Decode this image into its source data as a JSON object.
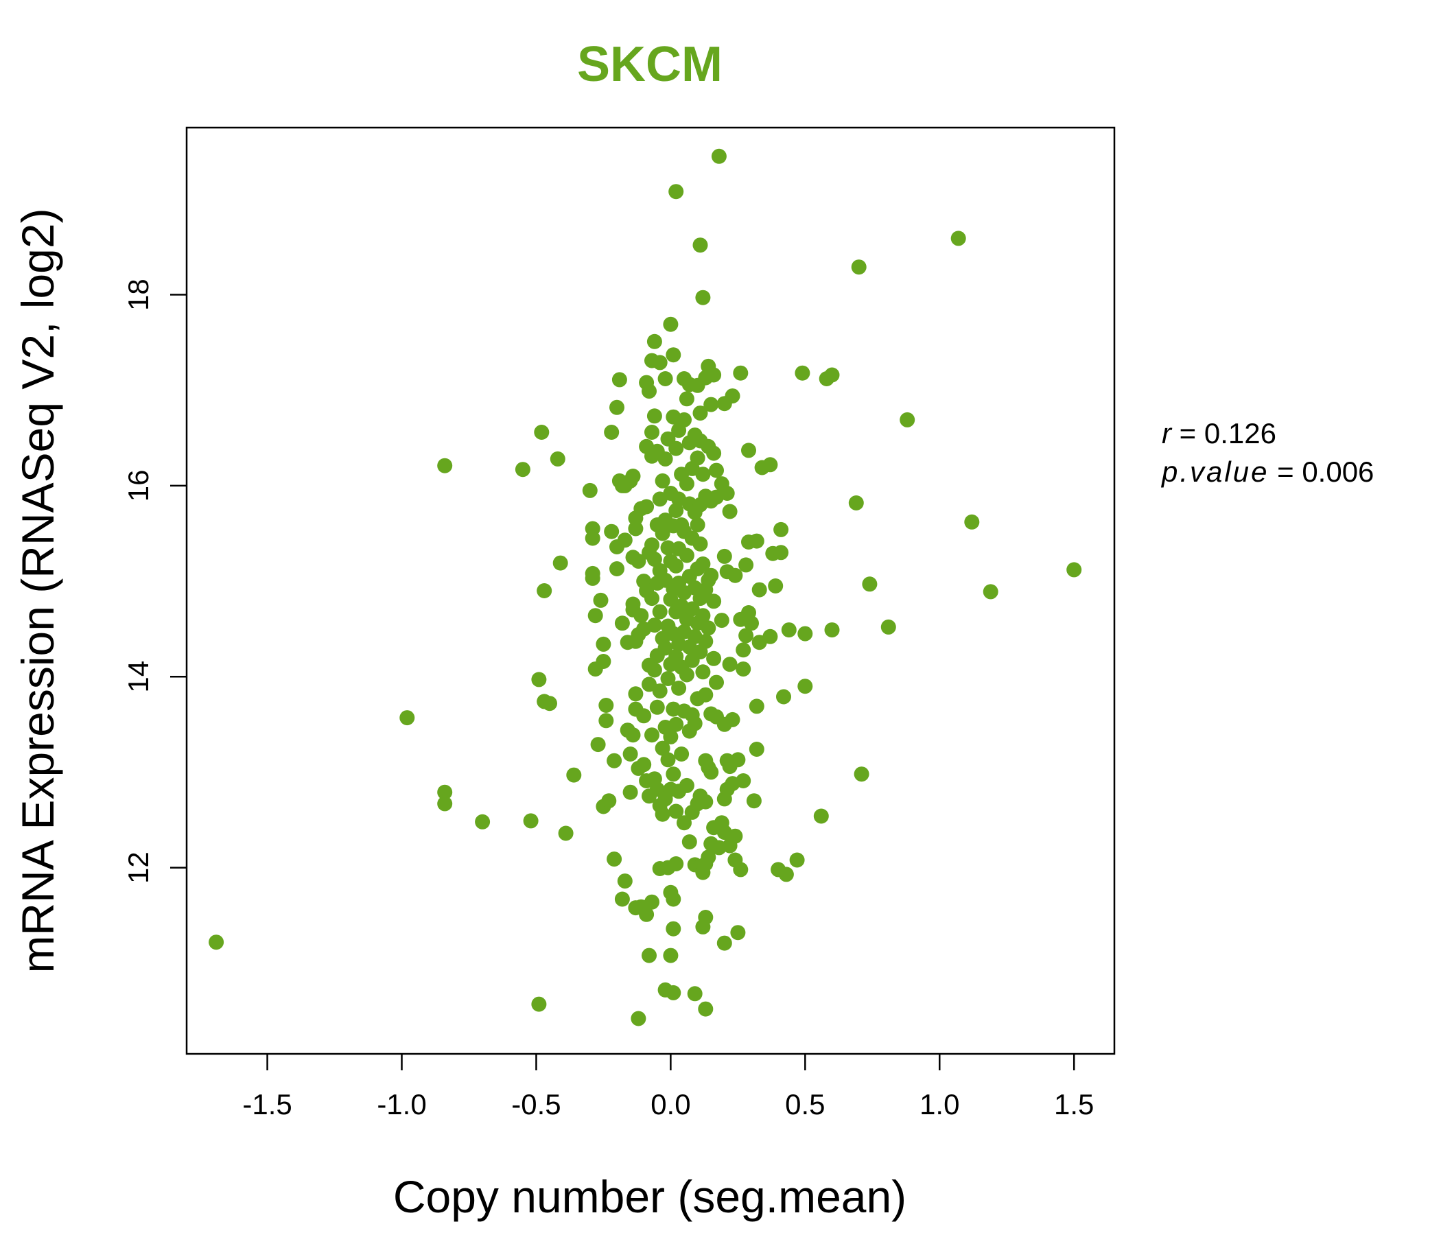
{
  "chart_data": {
    "type": "scatter",
    "title": "SKCM",
    "xlabel": "Copy number (seg.mean)",
    "ylabel": "mRNA Expression (RNASeq V2, log2)",
    "xlim": [
      -1.8,
      1.65
    ],
    "ylim": [
      10.05,
      19.75
    ],
    "xticks": [
      -1.5,
      -1.0,
      -0.5,
      0.0,
      0.5,
      1.0,
      1.5
    ],
    "xtick_labels": [
      "-1.5",
      "-1.0",
      "-0.5",
      "0.0",
      "0.5",
      "1.0",
      "1.5"
    ],
    "yticks": [
      12,
      14,
      16,
      18
    ],
    "ytick_labels": [
      "12",
      "14",
      "16",
      "18"
    ],
    "grid": false,
    "point_color": "#66A61E",
    "stats": {
      "r_label": "r",
      "r_value": "0.126",
      "p_label": "p.value",
      "p_value": "0.006"
    },
    "points": [
      [
        -1.69,
        11.22
      ],
      [
        -0.98,
        13.57
      ],
      [
        -0.84,
        16.21
      ],
      [
        -0.84,
        12.79
      ],
      [
        -0.84,
        12.67
      ],
      [
        -0.7,
        12.48
      ],
      [
        -0.55,
        16.17
      ],
      [
        -0.52,
        12.49
      ],
      [
        -0.49,
        13.97
      ],
      [
        -0.48,
        16.56
      ],
      [
        -0.47,
        14.9
      ],
      [
        -0.47,
        13.74
      ],
      [
        -0.45,
        13.72
      ],
      [
        -0.42,
        16.28
      ],
      [
        -0.41,
        15.19
      ],
      [
        -0.39,
        12.36
      ],
      [
        -0.36,
        12.97
      ],
      [
        -0.49,
        10.57
      ],
      [
        -0.3,
        15.95
      ],
      [
        -0.29,
        15.55
      ],
      [
        -0.29,
        15.45
      ],
      [
        -0.29,
        15.08
      ],
      [
        -0.29,
        15.03
      ],
      [
        -0.28,
        14.64
      ],
      [
        -0.28,
        14.08
      ],
      [
        -0.27,
        13.29
      ],
      [
        -0.26,
        14.8
      ],
      [
        -0.25,
        14.34
      ],
      [
        -0.25,
        14.16
      ],
      [
        -0.25,
        12.64
      ],
      [
        -0.24,
        13.7
      ],
      [
        -0.24,
        13.54
      ],
      [
        -0.23,
        12.7
      ],
      [
        -0.22,
        16.56
      ],
      [
        -0.22,
        15.52
      ],
      [
        -0.21,
        13.12
      ],
      [
        -0.21,
        12.09
      ],
      [
        -0.2,
        16.82
      ],
      [
        -0.2,
        15.36
      ],
      [
        -0.2,
        15.13
      ],
      [
        -0.19,
        17.11
      ],
      [
        -0.19,
        16.05
      ],
      [
        -0.18,
        16.0
      ],
      [
        -0.18,
        14.56
      ],
      [
        -0.18,
        11.67
      ],
      [
        -0.17,
        16.0
      ],
      [
        -0.17,
        15.43
      ],
      [
        -0.17,
        11.86
      ],
      [
        -0.16,
        14.36
      ],
      [
        -0.16,
        13.44
      ],
      [
        -0.15,
        16.05
      ],
      [
        -0.15,
        13.19
      ],
      [
        -0.15,
        12.79
      ],
      [
        -0.14,
        16.1
      ],
      [
        -0.14,
        15.25
      ],
      [
        -0.14,
        14.76
      ],
      [
        -0.14,
        14.7
      ],
      [
        -0.14,
        13.39
      ],
      [
        -0.13,
        15.66
      ],
      [
        -0.13,
        15.55
      ],
      [
        -0.13,
        14.37
      ],
      [
        -0.13,
        13.82
      ],
      [
        -0.13,
        13.66
      ],
      [
        -0.13,
        11.58
      ],
      [
        -0.12,
        15.21
      ],
      [
        -0.12,
        14.44
      ],
      [
        -0.12,
        13.04
      ],
      [
        -0.12,
        10.42
      ],
      [
        -0.11,
        15.76
      ],
      [
        -0.11,
        14.64
      ],
      [
        -0.11,
        11.59
      ],
      [
        -0.1,
        15.0
      ],
      [
        -0.1,
        14.5
      ],
      [
        -0.1,
        13.59
      ],
      [
        -0.1,
        13.08
      ],
      [
        -0.09,
        17.08
      ],
      [
        -0.09,
        16.41
      ],
      [
        -0.09,
        15.78
      ],
      [
        -0.09,
        14.9
      ],
      [
        -0.09,
        12.91
      ],
      [
        -0.09,
        11.51
      ],
      [
        -0.08,
        16.99
      ],
      [
        -0.08,
        15.3
      ],
      [
        -0.08,
        14.12
      ],
      [
        -0.08,
        13.92
      ],
      [
        -0.08,
        12.75
      ],
      [
        -0.08,
        11.08
      ],
      [
        -0.07,
        17.31
      ],
      [
        -0.07,
        16.56
      ],
      [
        -0.07,
        16.31
      ],
      [
        -0.07,
        15.38
      ],
      [
        -0.07,
        14.82
      ],
      [
        -0.07,
        13.39
      ],
      [
        -0.07,
        11.64
      ],
      [
        -0.06,
        17.51
      ],
      [
        -0.06,
        16.73
      ],
      [
        -0.06,
        15.23
      ],
      [
        -0.06,
        14.54
      ],
      [
        -0.06,
        14.07
      ],
      [
        -0.06,
        12.93
      ],
      [
        -0.05,
        16.36
      ],
      [
        -0.05,
        15.59
      ],
      [
        -0.05,
        14.98
      ],
      [
        -0.05,
        14.22
      ],
      [
        -0.05,
        13.68
      ],
      [
        -0.05,
        12.82
      ],
      [
        -0.04,
        17.29
      ],
      [
        -0.04,
        15.86
      ],
      [
        -0.04,
        15.11
      ],
      [
        -0.04,
        14.68
      ],
      [
        -0.04,
        13.85
      ],
      [
        -0.04,
        12.65
      ],
      [
        -0.04,
        11.99
      ],
      [
        -0.03,
        16.05
      ],
      [
        -0.03,
        15.5
      ],
      [
        -0.03,
        14.4
      ],
      [
        -0.03,
        13.25
      ],
      [
        -0.03,
        12.56
      ],
      [
        -0.02,
        17.12
      ],
      [
        -0.02,
        16.28
      ],
      [
        -0.02,
        15.64
      ],
      [
        -0.02,
        15.01
      ],
      [
        -0.02,
        14.3
      ],
      [
        -0.02,
        13.47
      ],
      [
        -0.02,
        12.72
      ],
      [
        -0.02,
        10.72
      ],
      [
        -0.01,
        16.49
      ],
      [
        -0.01,
        15.35
      ],
      [
        -0.01,
        14.53
      ],
      [
        -0.01,
        13.98
      ],
      [
        -0.01,
        13.13
      ],
      [
        -0.01,
        12.0
      ],
      [
        0.0,
        17.69
      ],
      [
        0.0,
        15.92
      ],
      [
        0.0,
        15.21
      ],
      [
        0.0,
        14.81
      ],
      [
        0.0,
        14.13
      ],
      [
        0.0,
        13.37
      ],
      [
        0.0,
        12.82
      ],
      [
        0.0,
        11.74
      ],
      [
        0.0,
        11.08
      ],
      [
        0.01,
        17.37
      ],
      [
        0.01,
        16.72
      ],
      [
        0.01,
        15.58
      ],
      [
        0.01,
        14.92
      ],
      [
        0.01,
        14.45
      ],
      [
        0.01,
        13.66
      ],
      [
        0.01,
        12.98
      ],
      [
        0.01,
        11.67
      ],
      [
        0.01,
        11.36
      ],
      [
        0.01,
        10.69
      ],
      [
        0.02,
        19.08
      ],
      [
        0.02,
        16.39
      ],
      [
        0.02,
        15.74
      ],
      [
        0.02,
        15.16
      ],
      [
        0.02,
        14.68
      ],
      [
        0.02,
        14.21
      ],
      [
        0.02,
        13.5
      ],
      [
        0.02,
        12.59
      ],
      [
        0.02,
        12.04
      ],
      [
        0.03,
        16.58
      ],
      [
        0.03,
        15.86
      ],
      [
        0.03,
        15.34
      ],
      [
        0.03,
        14.98
      ],
      [
        0.03,
        14.34
      ],
      [
        0.03,
        13.88
      ],
      [
        0.03,
        12.8
      ],
      [
        0.04,
        16.12
      ],
      [
        0.04,
        15.59
      ],
      [
        0.04,
        14.74
      ],
      [
        0.04,
        14.1
      ],
      [
        0.04,
        13.19
      ],
      [
        0.05,
        17.12
      ],
      [
        0.05,
        16.69
      ],
      [
        0.05,
        15.52
      ],
      [
        0.05,
        14.88
      ],
      [
        0.05,
        14.47
      ],
      [
        0.05,
        13.64
      ],
      [
        0.05,
        12.47
      ],
      [
        0.06,
        16.91
      ],
      [
        0.06,
        16.02
      ],
      [
        0.06,
        15.27
      ],
      [
        0.06,
        14.6
      ],
      [
        0.06,
        14.02
      ],
      [
        0.06,
        12.86
      ],
      [
        0.07,
        17.06
      ],
      [
        0.07,
        16.45
      ],
      [
        0.07,
        15.81
      ],
      [
        0.07,
        15.05
      ],
      [
        0.07,
        14.31
      ],
      [
        0.07,
        13.43
      ],
      [
        0.07,
        12.27
      ],
      [
        0.08,
        16.18
      ],
      [
        0.08,
        15.45
      ],
      [
        0.08,
        14.71
      ],
      [
        0.08,
        14.17
      ],
      [
        0.08,
        13.6
      ],
      [
        0.08,
        12.58
      ],
      [
        0.09,
        16.53
      ],
      [
        0.09,
        15.72
      ],
      [
        0.09,
        14.93
      ],
      [
        0.09,
        14.42
      ],
      [
        0.09,
        13.51
      ],
      [
        0.09,
        12.03
      ],
      [
        0.09,
        10.68
      ],
      [
        0.1,
        17.05
      ],
      [
        0.1,
        16.29
      ],
      [
        0.1,
        15.59
      ],
      [
        0.1,
        15.13
      ],
      [
        0.1,
        14.56
      ],
      [
        0.1,
        13.77
      ],
      [
        0.1,
        12.67
      ],
      [
        0.11,
        18.52
      ],
      [
        0.11,
        16.76
      ],
      [
        0.11,
        16.47
      ],
      [
        0.11,
        15.8
      ],
      [
        0.11,
        15.39
      ],
      [
        0.11,
        14.82
      ],
      [
        0.11,
        14.26
      ],
      [
        0.11,
        12.75
      ],
      [
        0.11,
        12.01
      ],
      [
        0.12,
        17.97
      ],
      [
        0.12,
        16.12
      ],
      [
        0.12,
        15.18
      ],
      [
        0.12,
        14.64
      ],
      [
        0.12,
        14.05
      ],
      [
        0.12,
        11.95
      ],
      [
        0.12,
        11.38
      ],
      [
        0.13,
        17.13
      ],
      [
        0.13,
        15.89
      ],
      [
        0.13,
        14.91
      ],
      [
        0.13,
        14.37
      ],
      [
        0.13,
        13.81
      ],
      [
        0.13,
        13.12
      ],
      [
        0.13,
        12.69
      ],
      [
        0.13,
        12.04
      ],
      [
        0.13,
        11.48
      ],
      [
        0.13,
        10.52
      ],
      [
        0.14,
        17.25
      ],
      [
        0.14,
        16.41
      ],
      [
        0.14,
        15.01
      ],
      [
        0.14,
        14.51
      ],
      [
        0.14,
        13.05
      ],
      [
        0.14,
        12.11
      ],
      [
        0.15,
        16.85
      ],
      [
        0.15,
        15.84
      ],
      [
        0.15,
        15.06
      ],
      [
        0.15,
        13.61
      ],
      [
        0.15,
        13.0
      ],
      [
        0.15,
        12.25
      ],
      [
        0.16,
        17.16
      ],
      [
        0.16,
        16.34
      ],
      [
        0.16,
        14.79
      ],
      [
        0.16,
        14.19
      ],
      [
        0.16,
        12.42
      ],
      [
        0.17,
        16.16
      ],
      [
        0.17,
        15.88
      ],
      [
        0.17,
        13.94
      ],
      [
        0.17,
        13.58
      ],
      [
        0.18,
        19.45
      ],
      [
        0.18,
        12.21
      ],
      [
        0.19,
        16.02
      ],
      [
        0.19,
        14.59
      ],
      [
        0.19,
        12.47
      ],
      [
        0.2,
        16.86
      ],
      [
        0.2,
        15.26
      ],
      [
        0.2,
        13.5
      ],
      [
        0.2,
        12.72
      ],
      [
        0.2,
        12.37
      ],
      [
        0.2,
        11.21
      ],
      [
        0.21,
        15.92
      ],
      [
        0.21,
        15.1
      ],
      [
        0.21,
        13.12
      ],
      [
        0.21,
        12.82
      ],
      [
        0.22,
        15.73
      ],
      [
        0.22,
        14.13
      ],
      [
        0.22,
        13.06
      ],
      [
        0.22,
        12.23
      ],
      [
        0.23,
        16.94
      ],
      [
        0.23,
        13.55
      ],
      [
        0.23,
        12.88
      ],
      [
        0.24,
        15.06
      ],
      [
        0.24,
        12.33
      ],
      [
        0.24,
        12.08
      ],
      [
        0.25,
        13.13
      ],
      [
        0.25,
        11.32
      ],
      [
        0.26,
        17.18
      ],
      [
        0.26,
        14.6
      ],
      [
        0.26,
        11.98
      ],
      [
        0.27,
        14.28
      ],
      [
        0.27,
        14.08
      ],
      [
        0.27,
        12.91
      ],
      [
        0.28,
        15.17
      ],
      [
        0.28,
        14.43
      ],
      [
        0.29,
        15.41
      ],
      [
        0.29,
        14.67
      ],
      [
        0.29,
        16.37
      ],
      [
        0.3,
        14.56
      ],
      [
        0.31,
        12.7
      ],
      [
        0.32,
        15.42
      ],
      [
        0.32,
        13.24
      ],
      [
        0.32,
        13.69
      ],
      [
        0.33,
        14.36
      ],
      [
        0.33,
        14.91
      ],
      [
        0.34,
        16.19
      ],
      [
        0.37,
        16.22
      ],
      [
        0.37,
        14.42
      ],
      [
        0.38,
        15.29
      ],
      [
        0.39,
        14.95
      ],
      [
        0.4,
        11.98
      ],
      [
        0.41,
        15.54
      ],
      [
        0.41,
        15.3
      ],
      [
        0.42,
        13.79
      ],
      [
        0.43,
        11.93
      ],
      [
        0.44,
        14.49
      ],
      [
        0.47,
        12.08
      ],
      [
        0.49,
        17.18
      ],
      [
        0.5,
        14.45
      ],
      [
        0.5,
        13.9
      ],
      [
        0.56,
        12.54
      ],
      [
        0.58,
        17.12
      ],
      [
        0.6,
        17.16
      ],
      [
        0.6,
        14.49
      ],
      [
        0.69,
        15.82
      ],
      [
        0.7,
        18.29
      ],
      [
        0.71,
        12.98
      ],
      [
        0.74,
        14.97
      ],
      [
        0.81,
        14.52
      ],
      [
        0.88,
        16.69
      ],
      [
        1.07,
        18.59
      ],
      [
        1.12,
        15.62
      ],
      [
        1.19,
        14.89
      ],
      [
        1.5,
        15.12
      ]
    ]
  }
}
